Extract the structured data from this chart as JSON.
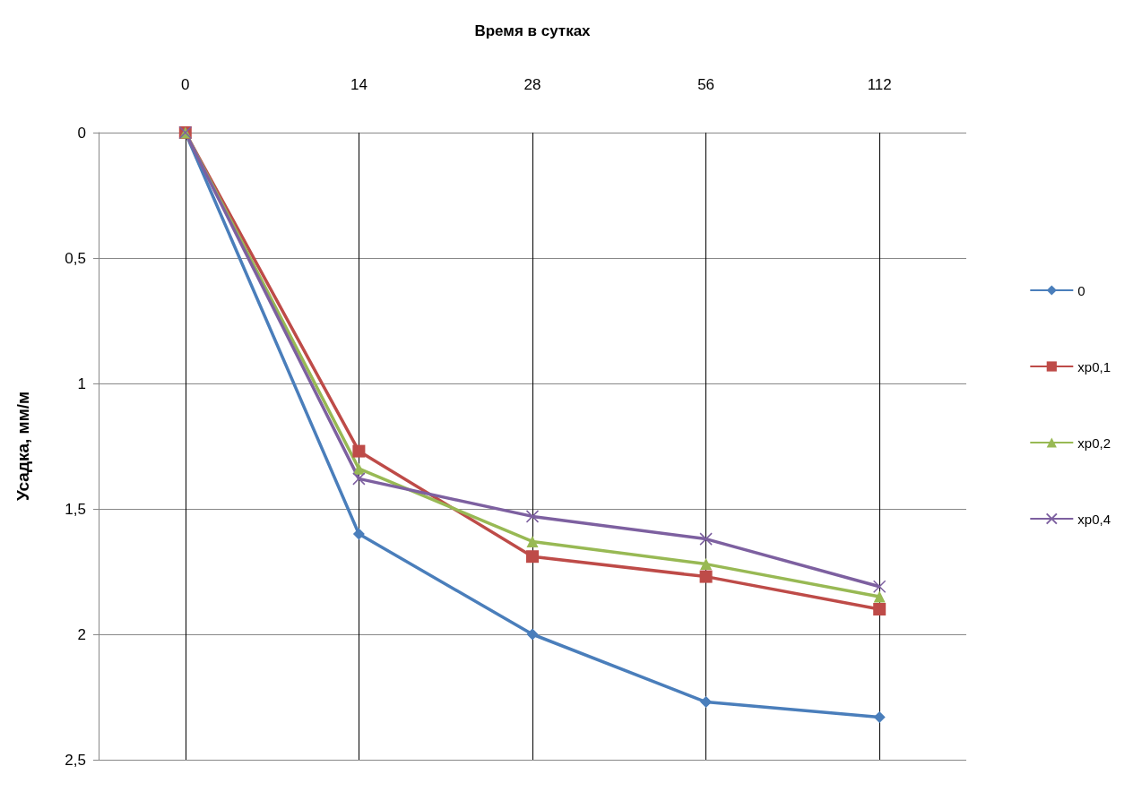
{
  "chart_data": {
    "type": "line",
    "xlabel": "Время в сутках",
    "ylabel": "Усадка, мм/м",
    "categories": [
      "0",
      "14",
      "28",
      "56",
      "112"
    ],
    "series": [
      {
        "name": "0",
        "color": "#4a7ebb",
        "marker": "diamond",
        "values": [
          0,
          1.6,
          2.0,
          2.27,
          2.33
        ]
      },
      {
        "name": "xp0,1",
        "color": "#be4b48",
        "marker": "square",
        "values": [
          0,
          1.27,
          1.69,
          1.77,
          1.9
        ]
      },
      {
        "name": "xp0,2",
        "color": "#98b954",
        "marker": "triangle",
        "values": [
          0,
          1.34,
          1.63,
          1.72,
          1.85
        ]
      },
      {
        "name": "xp0,4",
        "color": "#7d60a0",
        "marker": "cross",
        "values": [
          0,
          1.38,
          1.53,
          1.62,
          1.81
        ]
      }
    ],
    "ylim": [
      2.5,
      0
    ],
    "yticks": [
      0,
      {
        "value": 0.5,
        "label": "0,5"
      },
      1,
      {
        "value": 1.5,
        "label": "1,5"
      },
      2,
      {
        "value": 2.5,
        "label": "2,5"
      }
    ],
    "grid": true,
    "legend": "right"
  }
}
